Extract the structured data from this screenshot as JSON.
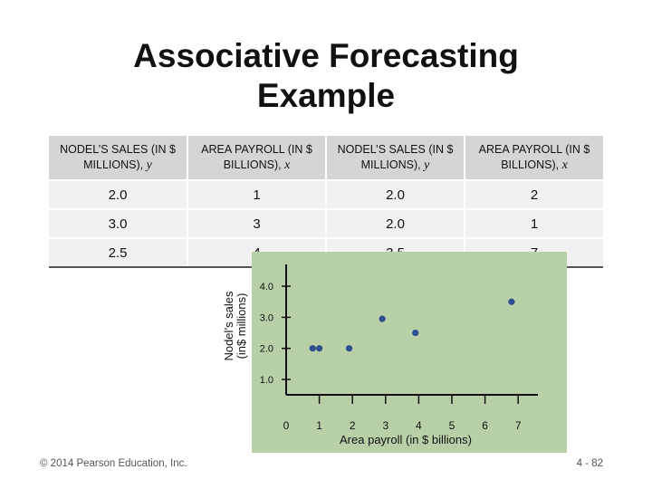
{
  "title": {
    "line1": "Associative Forecasting",
    "line2": "Example"
  },
  "table": {
    "headers": [
      {
        "text": "NODEL’S SALES (IN $ MILLIONS),",
        "var": "y"
      },
      {
        "text": "AREA PAYROLL (IN $ BILLIONS),",
        "var": "x"
      },
      {
        "text": "NODEL’S SALES (IN $ MILLIONS),",
        "var": "y"
      },
      {
        "text": "AREA PAYROLL (IN $ BILLIONS),",
        "var": "x"
      }
    ],
    "rows": [
      [
        "2.0",
        "1",
        "2.0",
        "2"
      ],
      [
        "3.0",
        "3",
        "2.0",
        "1"
      ],
      [
        "2.5",
        "4",
        "3.5",
        "7"
      ]
    ]
  },
  "chart_data": {
    "type": "scatter",
    "xlabel": "Area payroll (in $ billions)",
    "ylabel_line1": "Nodel’s sales",
    "ylabel_line2": "(in$ millions)",
    "x_ticks": [
      "0",
      "1",
      "2",
      "3",
      "4",
      "5",
      "6",
      "7"
    ],
    "y_ticks": [
      "1.0",
      "2.0",
      "3.0",
      "4.0"
    ],
    "xlim": [
      0,
      7
    ],
    "ylim": [
      1.0,
      4.0
    ],
    "points": [
      {
        "x": 0.8,
        "y": 2.0
      },
      {
        "x": 1.0,
        "y": 2.0
      },
      {
        "x": 1.9,
        "y": 2.0
      },
      {
        "x": 2.9,
        "y": 2.95
      },
      {
        "x": 3.9,
        "y": 2.5
      },
      {
        "x": 6.8,
        "y": 3.5
      }
    ],
    "plot_background": "#b9cfa8",
    "point_color": "#2e4f8f"
  },
  "footer": {
    "copyright": "© 2014 Pearson Education, Inc.",
    "page": "4 - 82"
  }
}
